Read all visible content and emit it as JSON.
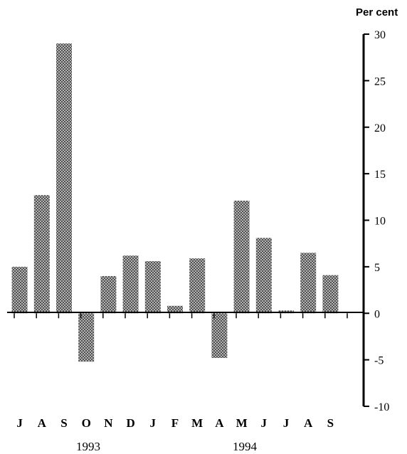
{
  "chart_data": {
    "type": "bar",
    "title": "",
    "xlabel": "",
    "ylabel": "Per cent",
    "categories": [
      "J",
      "A",
      "S",
      "O",
      "N",
      "D",
      "J",
      "F",
      "M",
      "A",
      "M",
      "J",
      "J",
      "A",
      "S"
    ],
    "values": [
      5.0,
      12.7,
      29.0,
      -5.2,
      4.0,
      6.2,
      5.6,
      0.8,
      5.9,
      -4.8,
      12.1,
      8.1,
      0.3,
      6.5,
      4.1
    ],
    "year_labels": [
      "1993",
      "1994"
    ],
    "ylim": [
      -10,
      30
    ],
    "yticks": [
      "30",
      "25",
      "20",
      "15",
      "10",
      "5",
      "0",
      "-5",
      "-10"
    ],
    "grid": false,
    "bar_color": "#8c8c8c"
  }
}
